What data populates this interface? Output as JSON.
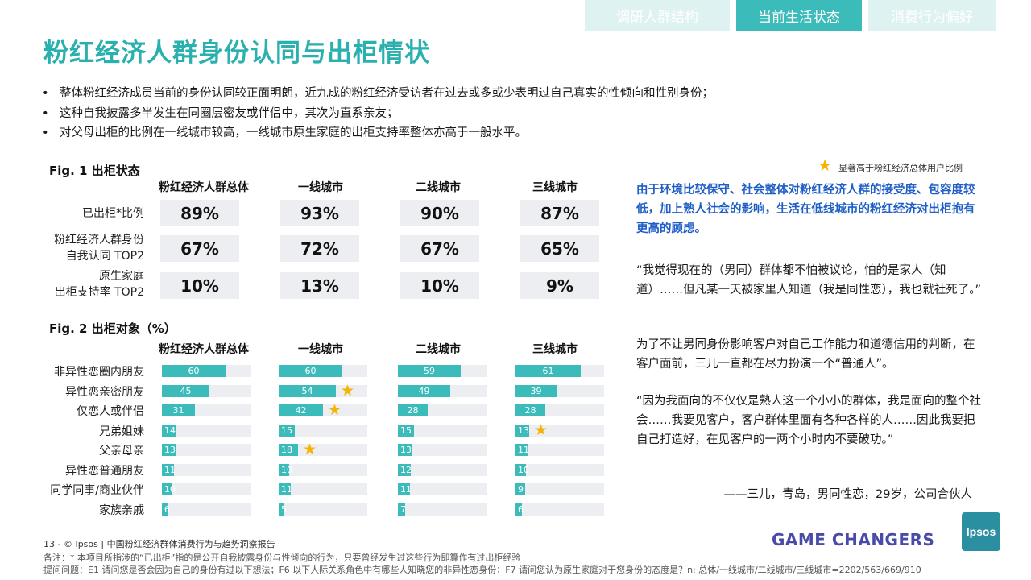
{
  "tabs": [
    {
      "label": "调研人群结构",
      "active": false
    },
    {
      "label": "当前生活状态",
      "active": true
    },
    {
      "label": "消费行为偏好",
      "active": false
    }
  ],
  "title": "粉红经济人群身份认同与出柜情状",
  "bullets": [
    "整体粉红经济成员当前的身份认同较正面明朗，近九成的粉红经济受访者在过去或多或少表明过自己真实的性倾向和性别身份；",
    "这种自我披露多半发生在同圈层密友或伴侣中，其次为直系亲友；",
    "对父母出柜的比例在一线城市较高，一线城市原生家庭的出柜支持率整体亦高于一般水平。"
  ],
  "fig1": {
    "title": "Fig. 1  出柜状态",
    "columns": [
      "粉红经济人群总体",
      "一线城市",
      "二线城市",
      "三线城市"
    ],
    "rows": [
      {
        "label": "已出柜*比例",
        "values": [
          "89%",
          "93%",
          "90%",
          "87%"
        ]
      },
      {
        "label_line1": "粉红经济人群身份",
        "label_line2": "自我认同 TOP2",
        "values": [
          "67%",
          "72%",
          "67%",
          "65%"
        ]
      },
      {
        "label_line1": "原生家庭",
        "label_line2": "出柜支持率 TOP2",
        "values": [
          "10%",
          "13%",
          "10%",
          "9%"
        ]
      }
    ]
  },
  "fig2": {
    "title": "Fig. 2  出柜对象（%）",
    "columns": [
      "粉红经济人群总体",
      "一线城市",
      "二线城市",
      "三线城市"
    ],
    "rows": [
      {
        "label": "非异性恋圈内朋友",
        "values": [
          60,
          60,
          59,
          61
        ],
        "stars": [
          false,
          false,
          false,
          false
        ]
      },
      {
        "label": "异性恋亲密朋友",
        "values": [
          45,
          54,
          49,
          39
        ],
        "stars": [
          false,
          true,
          false,
          false
        ]
      },
      {
        "label": "仅恋人或伴侣",
        "values": [
          31,
          42,
          28,
          28
        ],
        "stars": [
          false,
          true,
          false,
          false
        ]
      },
      {
        "label": "兄弟姐妹",
        "values": [
          14,
          15,
          15,
          13
        ],
        "stars": [
          false,
          false,
          false,
          true
        ]
      },
      {
        "label": "父亲母亲",
        "values": [
          13,
          18,
          13,
          11
        ],
        "stars": [
          false,
          true,
          false,
          false
        ]
      },
      {
        "label": "异性恋普通朋友",
        "values": [
          11,
          10,
          12,
          10
        ],
        "stars": [
          false,
          false,
          false,
          false
        ]
      },
      {
        "label": "同学同事/商业伙伴",
        "values": [
          10,
          11,
          11,
          9
        ],
        "stars": [
          false,
          false,
          false,
          false
        ]
      },
      {
        "label": "家族亲戚",
        "values": [
          6,
          5,
          7,
          6
        ],
        "stars": [
          false,
          false,
          false,
          false
        ]
      }
    ],
    "bar_scale_max": 100
  },
  "legend": {
    "star_icon": "star-icon",
    "text": "显著高于粉红经济总体用户比例"
  },
  "highlight": "由于环境比较保守、社会整体对粉红经济人群的接受度、包容度较低，加上熟人社会的影响，生活在低线城市的粉红经济对出柜抱有更高的顾虑。",
  "quote1": "“我觉得现在的（男同）群体都不怕被议论，怕的是家人（知道）……但凡某一天被家里人知道（我是同性恋），我也就社死了。”",
  "quote2": "为了不让男同身份影响客户对自己工作能力和道德信用的判断，在客户面前，三儿一直都在尽力扮演一个“普通人”。",
  "quote3": "“因为我面向的不仅仅是熟人这一个小小的群体，我是面向的整个社会……我要见客户，客户群体里面有各种各样的人……因此我要把自己打造好，在见客户的一两个小时内不要破功。”",
  "attribution": "——三儿，青岛，男同性恋，29岁，公司合伙人",
  "footer": {
    "page": "13  -  © Ipsos  |  中国粉红经济群体消费行为与趋势洞察报告",
    "note": "备注：* 本项目所指涉的“已出柜”指的是公开自我披露身份与性倾向的行为，只要曾经发生过这些行为即算作有过出柜经验",
    "questions": "提问问题：E1 请问您是否会因为自己的身份有过以下想法；F6 以下人际关系角色中有哪些人知晓您的非异性恋身份；F7 请问您认为原生家庭对于您身份的态度是？n: 总体/一线城市/二线城市/三线城市=2202/563/669/910",
    "brand": "GAME CHANGERS",
    "logo": "Ipsos"
  },
  "colors": {
    "accent": "#3bbbb9",
    "title": "#2ab0ae",
    "highlight": "#1f5ec6",
    "brand": "#4a4aa8",
    "star": "#f4b400"
  }
}
